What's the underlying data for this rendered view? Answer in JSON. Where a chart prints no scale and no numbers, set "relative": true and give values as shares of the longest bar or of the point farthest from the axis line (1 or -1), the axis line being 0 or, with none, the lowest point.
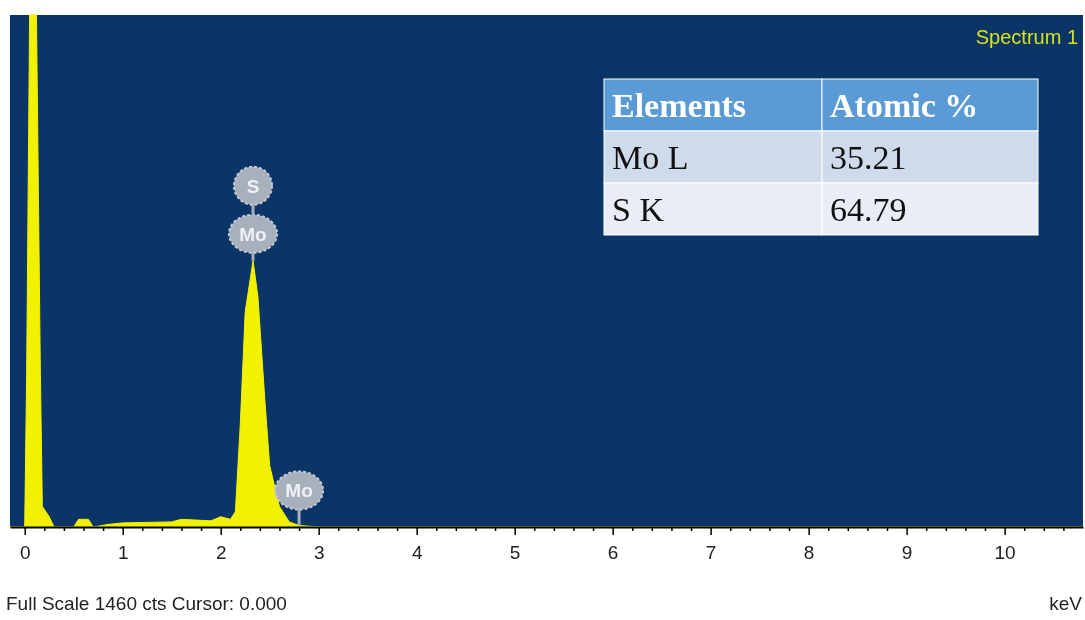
{
  "chart_data": {
    "type": "area",
    "relative": true,
    "xlabel": "keV",
    "color": "#f2f200",
    "x": [
      -0.15,
      0,
      0.02,
      0.05,
      0.12,
      0.16,
      0.18,
      0.25,
      0.3,
      0.5,
      0.55,
      0.65,
      0.7,
      0.85,
      1.0,
      1.5,
      1.6,
      1.9,
      2.0,
      2.1,
      2.15,
      2.2,
      2.25,
      2.33,
      2.38,
      2.45,
      2.5,
      2.6,
      2.7,
      2.8,
      3.0,
      10.8
    ],
    "values": [
      0,
      0,
      0.3,
      1,
      1,
      0.3,
      0.04,
      0.02,
      0,
      0,
      0.015,
      0.015,
      0,
      0.005,
      0.008,
      0.01,
      0.015,
      0.012,
      0.02,
      0.015,
      0.03,
      0.2,
      0.42,
      0.52,
      0.45,
      0.25,
      0.12,
      0.04,
      0.01,
      0.003,
      0,
      0
    ],
    "xlim": [
      -0.15,
      10.8
    ],
    "xticks": [
      0,
      {
        "value": 0.2,
        "label": null
      },
      {
        "value": 0.4,
        "label": null
      },
      {
        "value": 0.6,
        "label": null
      },
      {
        "value": 0.8,
        "label": null
      },
      1,
      {
        "value": 1.2,
        "label": null
      },
      {
        "value": 1.4,
        "label": null
      },
      {
        "value": 1.6,
        "label": null
      },
      {
        "value": 1.8,
        "label": null
      },
      2,
      {
        "value": 2.2,
        "label": null
      },
      {
        "value": 2.4,
        "label": null
      },
      {
        "value": 2.6,
        "label": null
      },
      {
        "value": 2.8,
        "label": null
      },
      3,
      {
        "value": 3.2,
        "label": null
      },
      {
        "value": 3.4,
        "label": null
      },
      {
        "value": 3.6,
        "label": null
      },
      {
        "value": 3.8,
        "label": null
      },
      4,
      {
        "value": 4.2,
        "label": null
      },
      {
        "value": 4.4,
        "label": null
      },
      {
        "value": 4.6,
        "label": null
      },
      {
        "value": 4.8,
        "label": null
      },
      5,
      {
        "value": 5.2,
        "label": null
      },
      {
        "value": 5.4,
        "label": null
      },
      {
        "value": 5.6,
        "label": null
      },
      {
        "value": 5.8,
        "label": null
      },
      6,
      {
        "value": 6.2,
        "label": null
      },
      {
        "value": 6.4,
        "label": null
      },
      {
        "value": 6.6,
        "label": null
      },
      {
        "value": 6.8,
        "label": null
      },
      7,
      {
        "value": 7.2,
        "label": null
      },
      {
        "value": 7.4,
        "label": null
      },
      {
        "value": 7.6,
        "label": null
      },
      {
        "value": 7.8,
        "label": null
      },
      8,
      {
        "value": 8.2,
        "label": null
      },
      {
        "value": 8.4,
        "label": null
      },
      {
        "value": 8.6,
        "label": null
      },
      {
        "value": 8.8,
        "label": null
      },
      9,
      {
        "value": 9.2,
        "label": null
      },
      {
        "value": 9.4,
        "label": null
      },
      {
        "value": 9.6,
        "label": null
      },
      {
        "value": 9.8,
        "label": null
      },
      10,
      {
        "value": 10.2,
        "label": null
      },
      {
        "value": 10.4,
        "label": null
      },
      {
        "value": 10.6,
        "label": null
      }
    ],
    "tick_labels": "x",
    "annotations": [
      "Spectrum 1",
      "Full Scale 1460 cts Cursor: 0.000",
      "Elements",
      "Atomic %",
      "Mo L",
      "35.21",
      "S K",
      "64.79",
      {
        "text": "Mo",
        "x": 2.33,
        "y": 0.52
      },
      "S",
      {
        "text": "Mo",
        "x": 2.8,
        "y": 0.003
      }
    ]
  }
}
